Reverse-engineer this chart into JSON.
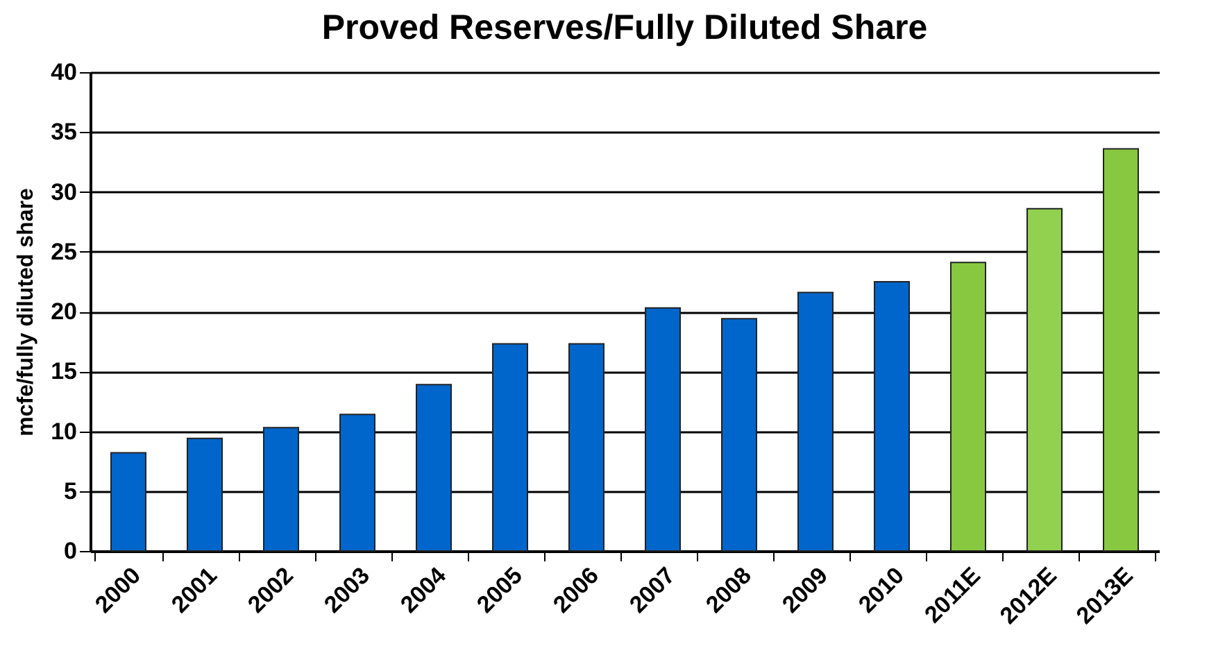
{
  "chart_data": {
    "type": "bar",
    "title": "Proved Reserves/Fully Diluted Share",
    "ylabel": "mcfe/fully diluted share",
    "categories": [
      "2000",
      "2001",
      "2002",
      "2003",
      "2004",
      "2005",
      "2006",
      "2007",
      "2008",
      "2009",
      "2010",
      "2011E",
      "2012E",
      "2013E"
    ],
    "values": [
      8.2,
      9.4,
      10.3,
      11.4,
      13.9,
      17.3,
      17.3,
      20.3,
      19.4,
      21.6,
      22.5,
      24.1,
      28.6,
      33.6
    ],
    "colors": [
      "#0066cc",
      "#0066cc",
      "#0066cc",
      "#0066cc",
      "#0066cc",
      "#0066cc",
      "#0066cc",
      "#0066cc",
      "#0066cc",
      "#0066cc",
      "#0066cc",
      "#88c840",
      "#92d050",
      "#88c840"
    ],
    "ylim": [
      0,
      40
    ],
    "yticks": [
      0,
      5,
      10,
      15,
      20,
      25,
      30,
      35,
      40
    ],
    "grid": "y"
  }
}
